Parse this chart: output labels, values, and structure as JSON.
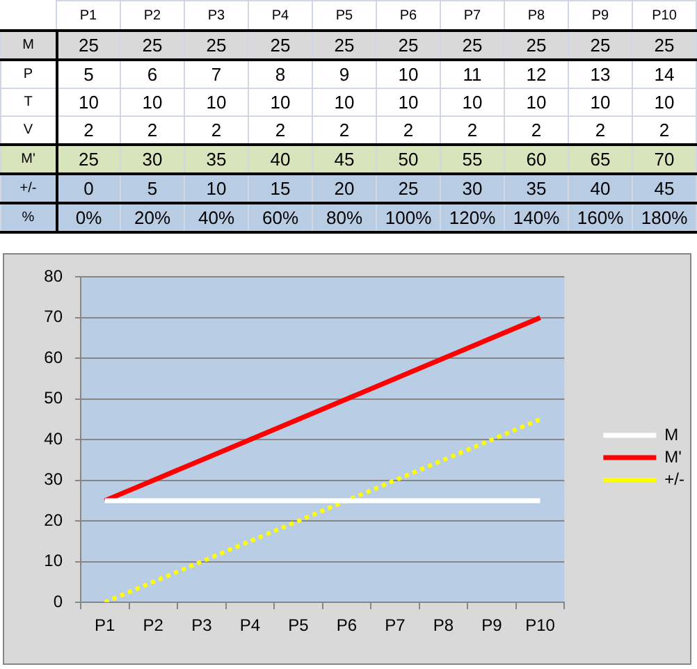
{
  "chart_data": [
    {
      "type": "heatmap",
      "categories": [
        "P1",
        "P2",
        "P3",
        "P4",
        "P5",
        "P6",
        "P7",
        "P8",
        "P9",
        "P10"
      ],
      "y_categories": [
        "M",
        "P",
        "T",
        "V",
        "M'",
        "+/-",
        "%"
      ],
      "cells": [
        [
          25,
          25,
          25,
          25,
          25,
          25,
          25,
          25,
          25,
          25
        ],
        [
          5,
          6,
          7,
          8,
          9,
          10,
          11,
          12,
          13,
          14
        ],
        [
          10,
          10,
          10,
          10,
          10,
          10,
          10,
          10,
          10,
          10
        ],
        [
          2,
          2,
          2,
          2,
          2,
          2,
          2,
          2,
          2,
          2
        ],
        [
          25,
          30,
          35,
          40,
          45,
          50,
          55,
          60,
          65,
          70
        ],
        [
          0,
          5,
          10,
          15,
          20,
          25,
          30,
          35,
          40,
          45
        ],
        [
          0,
          20,
          40,
          60,
          80,
          100,
          120,
          140,
          160,
          180
        ]
      ],
      "cell_labels": [
        [
          "25",
          "25",
          "25",
          "25",
          "25",
          "25",
          "25",
          "25",
          "25",
          "25"
        ],
        [
          "5",
          "6",
          "7",
          "8",
          "9",
          "10",
          "11",
          "12",
          "13",
          "14"
        ],
        [
          "10",
          "10",
          "10",
          "10",
          "10",
          "10",
          "10",
          "10",
          "10",
          "10"
        ],
        [
          "2",
          "2",
          "2",
          "2",
          "2",
          "2",
          "2",
          "2",
          "2",
          "2"
        ],
        [
          "25",
          "30",
          "35",
          "40",
          "45",
          "50",
          "55",
          "60",
          "65",
          "70"
        ],
        [
          "0",
          "5",
          "10",
          "15",
          "20",
          "25",
          "30",
          "35",
          "40",
          "45"
        ],
        [
          "0%",
          "20%",
          "40%",
          "60%",
          "80%",
          "100%",
          "120%",
          "140%",
          "160%",
          "180%"
        ]
      ],
      "colors": [
        "#d9d9d9",
        "#ffffff",
        "#ffffff",
        "#ffffff",
        "#d8e4bc",
        "#b8cce4",
        "#b8cce4"
      ]
    },
    {
      "type": "line",
      "categories": [
        "P1",
        "P2",
        "P3",
        "P4",
        "P5",
        "P6",
        "P7",
        "P8",
        "P9",
        "P10"
      ],
      "series": [
        {
          "name": "M",
          "color": "#ffffff",
          "values": [
            25,
            25,
            25,
            25,
            25,
            25,
            25,
            25,
            25,
            25
          ]
        },
        {
          "name": "M'",
          "color": "#ff0000",
          "values": [
            25,
            30,
            35,
            40,
            45,
            50,
            55,
            60,
            65,
            70
          ]
        },
        {
          "name": "+/-",
          "color": "#ffff00",
          "values": [
            0,
            5,
            10,
            15,
            20,
            25,
            30,
            35,
            40,
            45
          ],
          "line_style": "dotted"
        }
      ],
      "ylim": [
        0,
        80
      ],
      "yticks": [
        0,
        10,
        20,
        30,
        40,
        50,
        60,
        70,
        80
      ],
      "grid": "y",
      "legend": "right",
      "marker": "none"
    }
  ]
}
